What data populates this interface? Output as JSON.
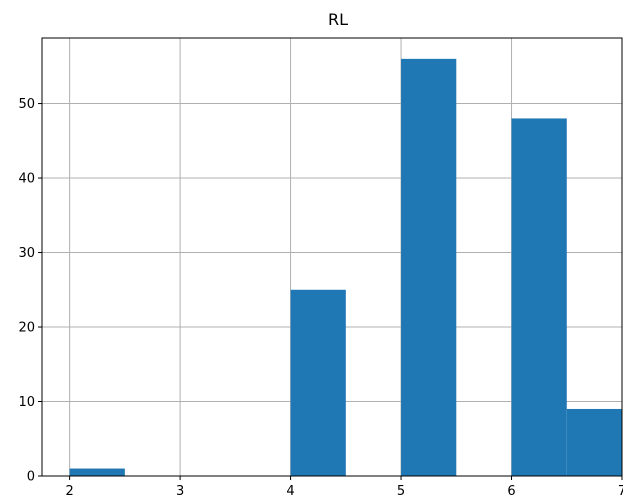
{
  "chart_data": {
    "type": "bar",
    "title": "RL",
    "xlabel": "",
    "ylabel": "",
    "bins": [
      {
        "start": 2.0,
        "end": 2.5,
        "count": 1
      },
      {
        "start": 2.5,
        "end": 3.0,
        "count": 0
      },
      {
        "start": 3.0,
        "end": 3.5,
        "count": 0
      },
      {
        "start": 3.5,
        "end": 4.0,
        "count": 0
      },
      {
        "start": 4.0,
        "end": 4.5,
        "count": 25
      },
      {
        "start": 4.5,
        "end": 5.0,
        "count": 0
      },
      {
        "start": 5.0,
        "end": 5.5,
        "count": 56
      },
      {
        "start": 5.5,
        "end": 6.0,
        "count": 0
      },
      {
        "start": 6.0,
        "end": 6.5,
        "count": 48
      },
      {
        "start": 6.5,
        "end": 7.0,
        "count": 9
      }
    ],
    "xlim": [
      1.75,
      7.0
    ],
    "ylim": [
      0,
      58.8
    ],
    "xticks": [
      "2",
      "3",
      "4",
      "5",
      "6",
      "7"
    ],
    "yticks": [
      "0",
      "10",
      "20",
      "30",
      "40",
      "50"
    ],
    "grid": true,
    "colors": {
      "bar": "#1f77b4",
      "grid": "#b0b0b0",
      "axis": "#000000"
    }
  }
}
